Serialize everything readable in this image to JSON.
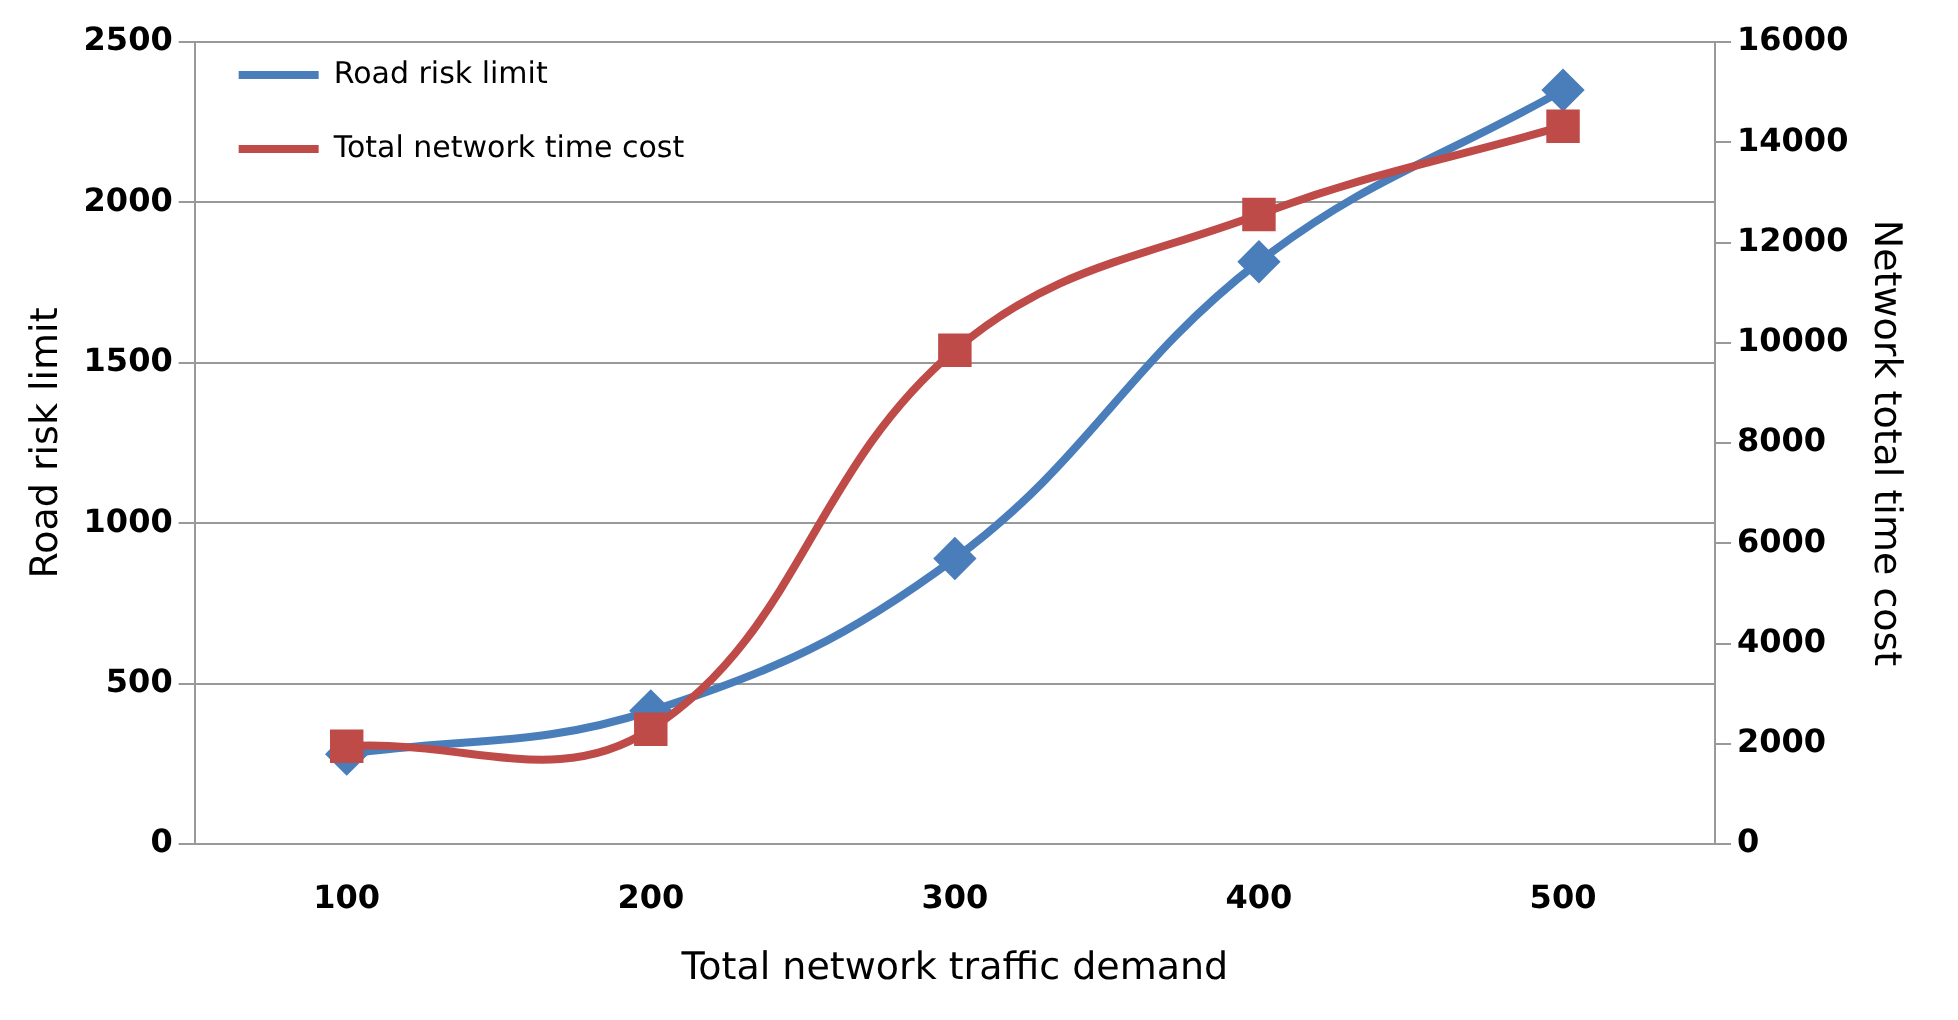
{
  "chart_data": {
    "type": "line",
    "xlabel": "Total network traffic demand",
    "ylabel": "Road risk limit",
    "y2label": "Network total time cost",
    "categories": [
      "100",
      "200",
      "300",
      "400",
      "500"
    ],
    "series": [
      {
        "name": "Road risk limit",
        "color": "#4a7ebb",
        "marker": "diamond",
        "values": [
          280,
          415,
          890,
          1815,
          2350
        ]
      },
      {
        "name": "Total network time cost",
        "color": "#be4b48",
        "marker": "square",
        "axis": "y2",
        "values": [
          1950,
          2290,
          9850,
          12560,
          14320
        ]
      }
    ],
    "ylim": [
      0,
      2500
    ],
    "yticks": [
      0,
      500,
      1000,
      1500,
      2000,
      2500
    ],
    "y2lim": [
      0,
      16000
    ],
    "y2ticks": [
      0,
      2000,
      4000,
      6000,
      8000,
      10000,
      12000,
      14000,
      16000
    ],
    "grid": "y",
    "legend": "top left"
  }
}
